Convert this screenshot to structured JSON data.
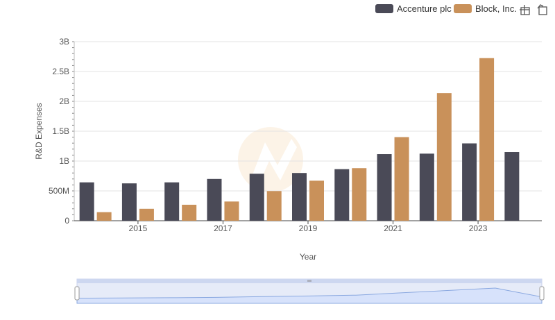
{
  "chart_data": {
    "type": "bar",
    "title": "",
    "xlabel": "Year",
    "ylabel": "R&D Expenses",
    "x": [
      2014,
      2015,
      2016,
      2017,
      2018,
      2019,
      2020,
      2021,
      2022,
      2023,
      2024
    ],
    "x_tick_labels": [
      "2015",
      "2017",
      "2019",
      "2021",
      "2023"
    ],
    "y_ticks": [
      0,
      500000000,
      1000000000,
      1500000000,
      2000000000,
      2500000000,
      3000000000
    ],
    "y_tick_labels": [
      "0",
      "500M",
      "1B",
      "1.5B",
      "2B",
      "2.5B",
      "3B"
    ],
    "ylim": [
      0,
      3000000000
    ],
    "grid": true,
    "legend_position": "top-right",
    "series": [
      {
        "name": "Accenture plc",
        "color": "#4a4a57",
        "values": [
          643000000,
          626000000,
          643000000,
          700000000,
          787000000,
          800000000,
          864000000,
          1116000000,
          1124000000,
          1296000000,
          1151000000
        ]
      },
      {
        "name": "Block, Inc.",
        "color": "#c9915a",
        "values": [
          144000000,
          200000000,
          268000000,
          322000000,
          497000000,
          671000000,
          881000000,
          1401000000,
          2138000000,
          2724000000,
          null
        ]
      }
    ],
    "navigator": {
      "type": "area",
      "color": "#9ab2e6"
    }
  },
  "toolbar": {
    "icons": [
      "crosshair-icon",
      "reset-zoom-icon"
    ]
  }
}
